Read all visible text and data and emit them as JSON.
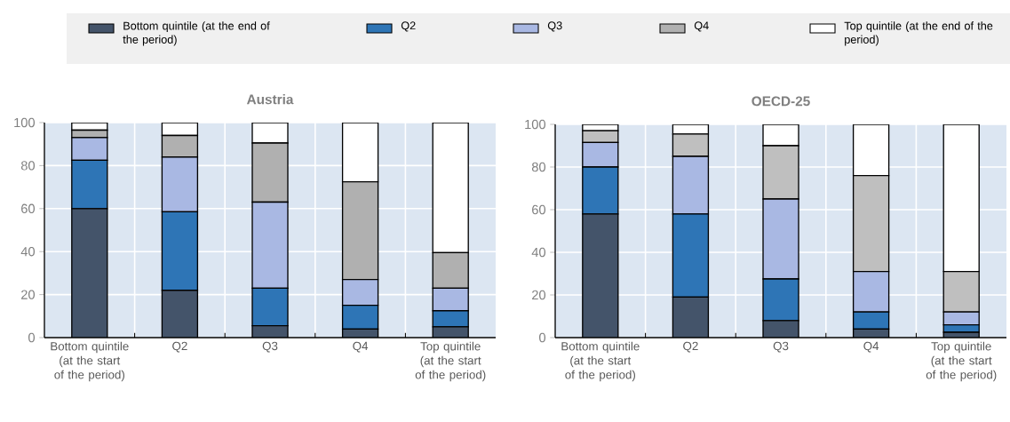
{
  "chart_data": [
    {
      "type": "bar",
      "title": "Austria",
      "stacked": true,
      "grid": true,
      "legend": "top",
      "categories": [
        "Bottom quintile (at the start of the period)",
        "Q2",
        "Q3",
        "Q4",
        "Top quintile (at the start of the period)"
      ],
      "ylim": [
        0,
        100
      ],
      "yticks": [
        0,
        20,
        40,
        60,
        80,
        100
      ],
      "series": [
        {
          "name": "Bottom quintile (at the end of the period)",
          "color": "#44546a",
          "values": [
            60,
            22,
            5.5,
            4,
            5
          ]
        },
        {
          "name": "Q2",
          "color": "#2e75b6",
          "values": [
            22.5,
            36.5,
            17.5,
            11,
            7.5
          ]
        },
        {
          "name": "Q3",
          "color": "#a9b8e3",
          "values": [
            10.5,
            25.5,
            40,
            12,
            10.5
          ]
        },
        {
          "name": "Q4",
          "color": "#b0b0b0",
          "values": [
            3.5,
            10,
            27.5,
            45.5,
            16.5
          ]
        },
        {
          "name": "Top quintile (at the end of the period)",
          "color": "#ffffff",
          "values": [
            3.5,
            6,
            9.5,
            27.5,
            60.5
          ]
        }
      ]
    },
    {
      "type": "bar",
      "title": "OECD-25",
      "stacked": true,
      "grid": true,
      "categories": [
        "Bottom quintile (at the start of the period)",
        "Q2",
        "Q3",
        "Q4",
        "Top quintile (at the start of the period)"
      ],
      "ylim": [
        0,
        100
      ],
      "yticks": [
        0,
        20,
        40,
        60,
        80,
        100
      ],
      "series": [
        {
          "color": "#44546a",
          "values": [
            58,
            19,
            8,
            4,
            2.5
          ]
        },
        {
          "color": "#2e75b6",
          "values": [
            22,
            39,
            19.5,
            8,
            3.5
          ]
        },
        {
          "color": "#a9b8e3",
          "values": [
            11.5,
            27,
            37.5,
            19,
            6
          ]
        },
        {
          "color": "#bfbfbf",
          "values": [
            5.5,
            10.5,
            25,
            45,
            19
          ]
        },
        {
          "color": "#ffffff",
          "values": [
            3,
            4.5,
            10,
            24,
            69
          ]
        }
      ]
    }
  ]
}
